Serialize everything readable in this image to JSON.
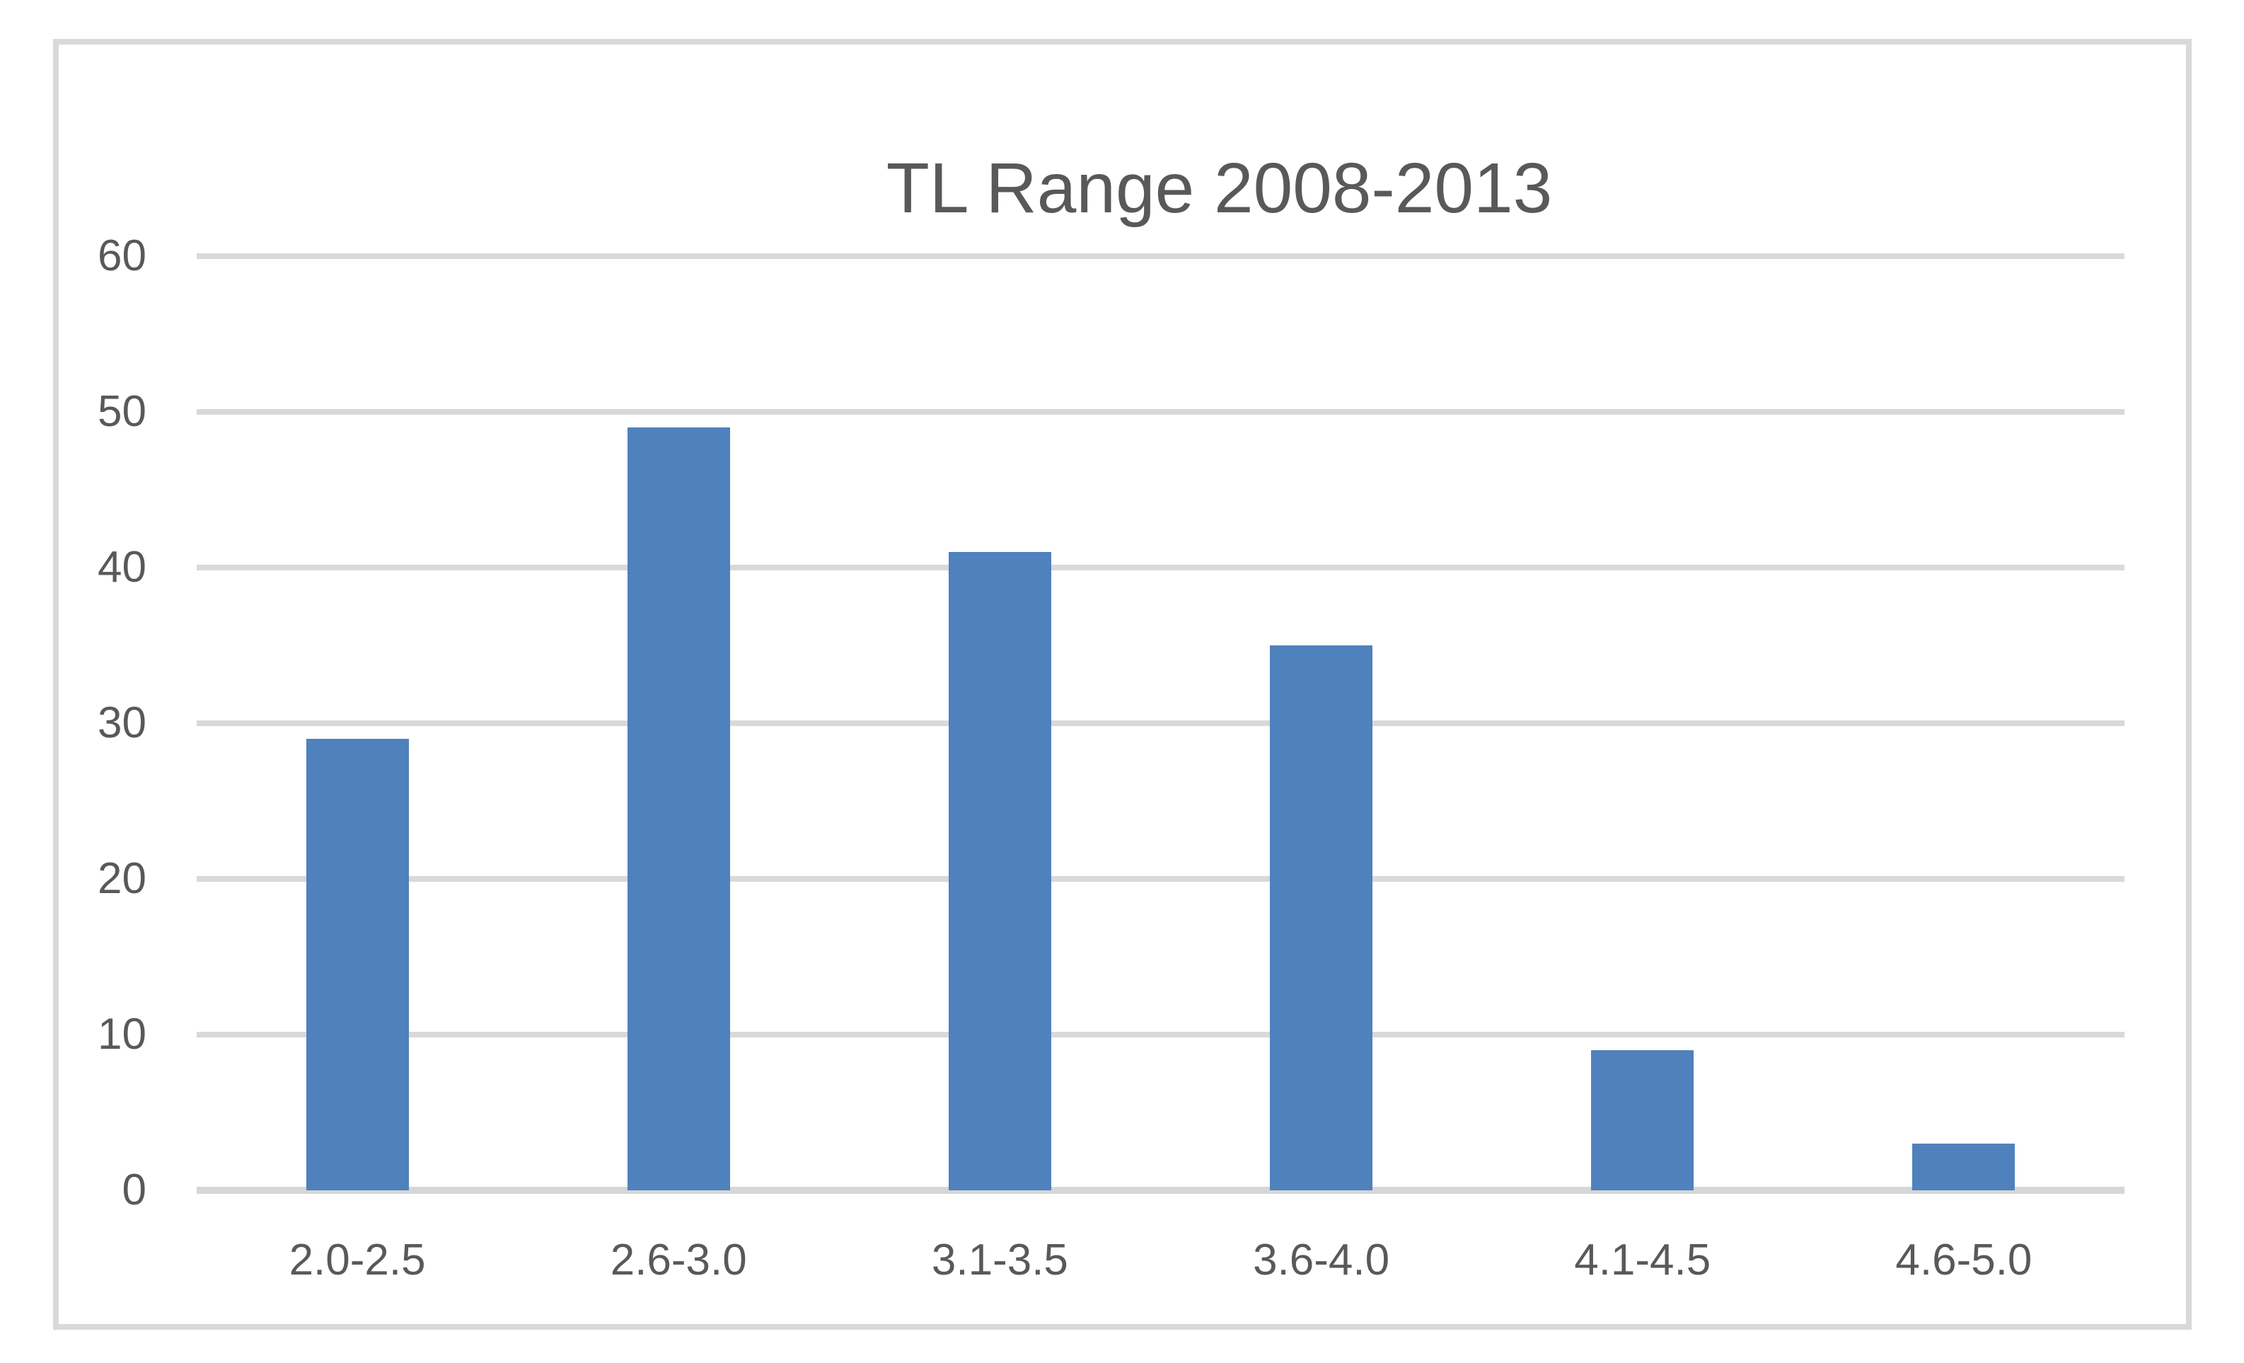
{
  "window": {
    "background_color": "#ffffff",
    "frame_border_color": "#d9d9d9"
  },
  "chart_data": {
    "type": "bar",
    "title": "TL Range 2008-2013",
    "categories": [
      "2.0-2.5",
      "2.6-3.0",
      "3.1-3.5",
      "3.6-4.0",
      "4.1-4.5",
      "4.6-5.0"
    ],
    "values": [
      29,
      49,
      41,
      35,
      9,
      3
    ],
    "xlabel": "",
    "ylabel": "",
    "ylim": [
      0,
      60
    ],
    "yticks": [
      0,
      10,
      20,
      30,
      40,
      50,
      60
    ],
    "grid": true,
    "legend": "none",
    "bar_color": "#4f81bd",
    "gridline_color": "#d9d9d9",
    "axis_line_color": "#d6d6d6",
    "text_color": "#595959"
  }
}
